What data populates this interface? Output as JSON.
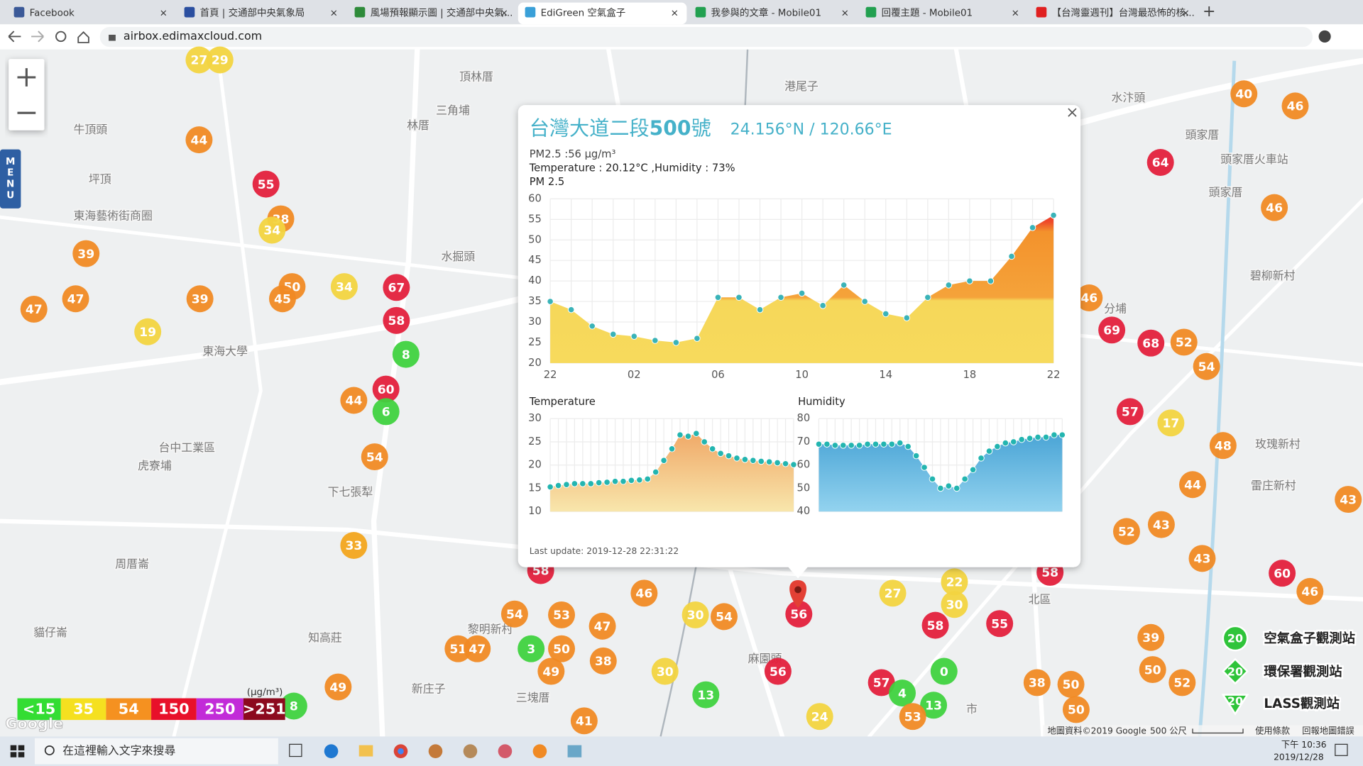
{
  "browser": {
    "tabs": [
      "Facebook",
      "首頁 | 交通部中央氣象局",
      "風場預報顯示圖 | 交通部中央氣...",
      "EdiGreen 空氣盒子",
      "我參與的文章 - Mobile01",
      "回覆主題 - Mobile01",
      "【台灣靈週刊】台灣最恐怖的核..."
    ],
    "url": "airbox.edimaxcloud.com"
  },
  "map": {
    "menu": "MENU",
    "labels": [
      "頂林厝",
      "三角埔",
      "林厝",
      "港尾子",
      "水汴頭",
      "頭家厝",
      "頭家厝火車站",
      "頭家厝",
      "牛頂頭",
      "坪頂",
      "東海藝術街商圈",
      "水掘頭",
      "東海大學",
      "碧柳新村",
      "分埔",
      "台中工業區",
      "虎寮埔",
      "下七張犁",
      "玫瑰新村",
      "雷庄新村",
      "周厝崙",
      "貓仔崙",
      "知高莊",
      "新庄子",
      "三塊厝",
      "黎明新村",
      "北區",
      "市",
      "麻園頭"
    ],
    "markers": [
      {
        "value": 27,
        "color": "#f2d440"
      },
      {
        "value": 29,
        "color": "#f2d440"
      },
      {
        "value": 44,
        "color": "#f08a24"
      },
      {
        "value": 55,
        "color": "#e3203c"
      },
      {
        "value": 38,
        "color": "#f08a24"
      },
      {
        "value": 34,
        "color": "#f2d440"
      },
      {
        "value": 39,
        "color": "#f08a24"
      },
      {
        "value": 47,
        "color": "#f08a24"
      },
      {
        "value": 47,
        "color": "#f08a24"
      },
      {
        "value": 39,
        "color": "#f08a24"
      },
      {
        "value": 19,
        "color": "#f2d440"
      },
      {
        "value": 50,
        "color": "#f08a24"
      },
      {
        "value": 45,
        "color": "#f08a24"
      },
      {
        "value": 34,
        "color": "#f2d440"
      },
      {
        "value": 67,
        "color": "#e3203c"
      },
      {
        "value": 58,
        "color": "#e3203c"
      },
      {
        "value": 8,
        "color": "#3fd23f"
      },
      {
        "value": 60,
        "color": "#e3203c"
      },
      {
        "value": 44,
        "color": "#f08a24"
      },
      {
        "value": 6,
        "color": "#3fd23f"
      },
      {
        "value": 54,
        "color": "#f08a24"
      },
      {
        "value": 33,
        "color": "#f2a51e"
      },
      {
        "value": 49,
        "color": "#f08a24"
      },
      {
        "value": 8,
        "color": "#3fd23f"
      },
      {
        "value": 58,
        "color": "#e3203c"
      },
      {
        "value": 46,
        "color": "#f08a24"
      },
      {
        "value": 54,
        "color": "#f08a24"
      },
      {
        "value": 53,
        "color": "#f08a24"
      },
      {
        "value": 47,
        "color": "#f08a24"
      },
      {
        "value": 51,
        "color": "#f08a24"
      },
      {
        "value": 47,
        "color": "#f08a24"
      },
      {
        "value": 3,
        "color": "#3fd23f"
      },
      {
        "value": 50,
        "color": "#f08a24"
      },
      {
        "value": 49,
        "color": "#f08a24"
      },
      {
        "value": 38,
        "color": "#f08a24"
      },
      {
        "value": 30,
        "color": "#f2d440"
      },
      {
        "value": 30,
        "color": "#f2d440"
      },
      {
        "value": 54,
        "color": "#f08a24"
      },
      {
        "value": 13,
        "color": "#3fd23f"
      },
      {
        "value": 41,
        "color": "#f08a24"
      },
      {
        "value": 56,
        "color": "#e3203c"
      },
      {
        "value": 56,
        "color": "#e3203c"
      },
      {
        "value": 24,
        "color": "#f2d440"
      },
      {
        "value": 27,
        "color": "#f2d440"
      },
      {
        "value": 22,
        "color": "#f2d440"
      },
      {
        "value": 30,
        "color": "#f2d440"
      },
      {
        "value": 58,
        "color": "#e3203c"
      },
      {
        "value": 55,
        "color": "#e3203c"
      },
      {
        "value": 0,
        "color": "#3fd23f"
      },
      {
        "value": 57,
        "color": "#e3203c"
      },
      {
        "value": 4,
        "color": "#3fd23f"
      },
      {
        "value": 13,
        "color": "#3fd23f"
      },
      {
        "value": 53,
        "color": "#f08a24"
      },
      {
        "value": 38,
        "color": "#f08a24"
      },
      {
        "value": 50,
        "color": "#f08a24"
      },
      {
        "value": 50,
        "color": "#f08a24"
      },
      {
        "value": 58,
        "color": "#e3203c"
      },
      {
        "value": 40,
        "color": "#f08a24"
      },
      {
        "value": 46,
        "color": "#f08a24"
      },
      {
        "value": 64,
        "color": "#e3203c"
      },
      {
        "value": 46,
        "color": "#f08a24"
      },
      {
        "value": 46,
        "color": "#f08a24"
      },
      {
        "value": 69,
        "color": "#e3203c"
      },
      {
        "value": 68,
        "color": "#e3203c"
      },
      {
        "value": 52,
        "color": "#f08a24"
      },
      {
        "value": 54,
        "color": "#f08a24"
      },
      {
        "value": 57,
        "color": "#e3203c"
      },
      {
        "value": 17,
        "color": "#f2d440"
      },
      {
        "value": 48,
        "color": "#f08a24"
      },
      {
        "value": 44,
        "color": "#f08a24"
      },
      {
        "value": 43,
        "color": "#f08a24"
      },
      {
        "value": 52,
        "color": "#f08a24"
      },
      {
        "value": 43,
        "color": "#f08a24"
      },
      {
        "value": 43,
        "color": "#f08a24"
      },
      {
        "value": 60,
        "color": "#e3203c"
      },
      {
        "value": 46,
        "color": "#f08a24"
      },
      {
        "value": 39,
        "color": "#f08a24"
      },
      {
        "value": 50,
        "color": "#f08a24"
      },
      {
        "value": 52,
        "color": "#f08a24"
      }
    ],
    "legend": {
      "items": [
        {
          "label": "<15",
          "color": "#33dd33"
        },
        {
          "label": "35",
          "color": "#f5e020"
        },
        {
          "label": "54",
          "color": "#f59120"
        },
        {
          "label": "150",
          "color": "#e8102a"
        },
        {
          "label": "250",
          "color": "#c22bd8"
        },
        {
          "label": ">251",
          "color": "#8c0a1e"
        }
      ],
      "unit": "(μg/m³)"
    },
    "stations": [
      {
        "icon": "20",
        "label": "空氣盒子觀測站",
        "color": "#2fc43a"
      },
      {
        "icon": "20",
        "label": "環保署觀測站",
        "color": "#2fc43a"
      },
      {
        "icon": "20",
        "label": "LASS觀測站",
        "color": "#2fc43a"
      }
    ],
    "google": "Google",
    "attribution": "地圖資料©2019 Google",
    "scale": "500 公尺",
    "terms": "使用條款",
    "report": "回報地圖錯誤"
  },
  "popup": {
    "title_prefix": "台灣大道二段",
    "title_number": "500",
    "title_suffix": "號",
    "coords": "24.156°N / 120.66°E",
    "pm_line": "PM2.5 :56 μg/m³",
    "env_line": "Temperature : 20.12°C ,Humidity : 73%",
    "last_update": "Last update: 2019-12-28 22:31:22",
    "charts": [
      {
        "type": "area",
        "title": "PM 2.5",
        "x_labels": [
          "22",
          "02",
          "06",
          "10",
          "14",
          "18",
          "22"
        ],
        "values": [
          35,
          33,
          29,
          27,
          26.5,
          25.5,
          25,
          26,
          36,
          36,
          33,
          36,
          37,
          34,
          39,
          35,
          32,
          31,
          36,
          39,
          40,
          40,
          46,
          53,
          56
        ],
        "ylim": [
          20,
          60
        ],
        "yticks": [
          20,
          25,
          30,
          35,
          40,
          45,
          50,
          55,
          60
        ],
        "color": "#3ab3b8",
        "grid": true
      },
      {
        "type": "area",
        "title": "Temperature",
        "values": [
          15.3,
          15.6,
          15.8,
          16,
          16,
          16,
          16.2,
          16.3,
          16.5,
          16.5,
          16.7,
          16.8,
          17,
          18.5,
          21,
          23.5,
          26.5,
          26.2,
          26.8,
          25,
          23.5,
          22.5,
          22,
          21.5,
          21.2,
          21,
          20.8,
          20.7,
          20.5,
          20.3,
          20.1
        ],
        "ylim": [
          10,
          30
        ],
        "yticks": [
          10,
          15,
          20,
          25,
          30
        ],
        "color": "#23b5b0",
        "grid": true
      },
      {
        "type": "area",
        "title": "Humidity",
        "values": [
          69,
          69,
          68.5,
          68.5,
          68.5,
          68.5,
          69,
          69,
          69,
          69,
          69.5,
          68,
          64,
          59,
          54,
          50,
          51,
          50,
          54,
          58,
          63,
          66,
          68,
          69.5,
          70,
          71,
          71.5,
          72,
          72,
          73,
          73
        ],
        "ylim": [
          40,
          80
        ],
        "yticks": [
          40,
          50,
          60,
          70,
          80
        ],
        "color": "#23b5b0",
        "grid": true
      }
    ]
  },
  "taskbar": {
    "search": "在這裡輸入文字來搜尋",
    "time": "下午 10:36",
    "date": "2019/12/28"
  }
}
